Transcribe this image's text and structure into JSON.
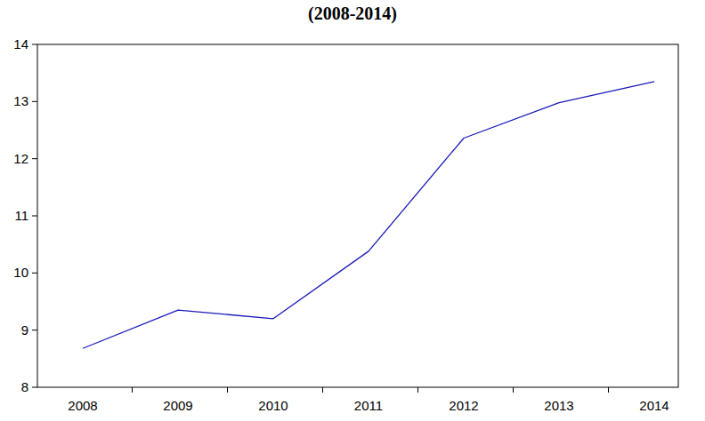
{
  "chart_data": {
    "type": "line",
    "title": "(2008-2014)",
    "categories": [
      "2008",
      "2009",
      "2010",
      "2011",
      "2012",
      "2013",
      "2014"
    ],
    "values": [
      8.68,
      9.35,
      9.2,
      10.38,
      12.36,
      12.98,
      13.35
    ],
    "color": "#1a1ab8",
    "ylim": [
      8,
      14
    ],
    "yticks": [
      8,
      9,
      10,
      11,
      12,
      13,
      14
    ],
    "grid": false
  }
}
